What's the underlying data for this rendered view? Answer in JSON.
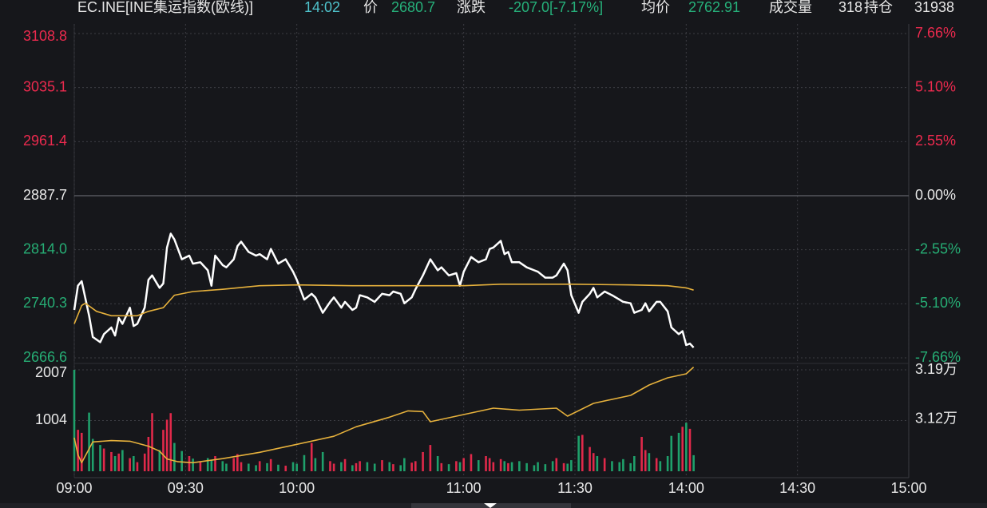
{
  "header": {
    "symbol": "EC.INE[INE集运指数(欧线)]",
    "time": "14:02",
    "price_label": "价",
    "price": 2680.7,
    "change_label": "涨跌",
    "change": "-207.0[-7.17%]",
    "avg_label": "均价",
    "avg": 2762.91,
    "volume_label": "成交量",
    "volume": 318,
    "oi_label": "持仓",
    "oi": 31938
  },
  "chart_data": [
    {
      "type": "line",
      "grid": true,
      "xlim": [
        "09:00",
        "15:00"
      ],
      "xticks": [
        "09:00",
        "09:30",
        "10:00",
        "11:00",
        "11:30",
        "14:00",
        "14:30",
        "15:00"
      ],
      "ylim": [
        2666.6,
        3108.8
      ],
      "yticks": [
        3108.8,
        3035.1,
        2961.4,
        2887.7,
        {
          "value": 2814,
          "label": "2814.0"
        },
        2740.3,
        2666.6
      ],
      "y2lim": [
        -7.66,
        7.66
      ],
      "y2ticks": [
        {
          "value": 7.66,
          "label": "7.66%"
        },
        {
          "value": 5.1,
          "label": "5.10%"
        },
        {
          "value": 2.55,
          "label": "2.55%"
        },
        {
          "value": 0,
          "label": "0.00%"
        },
        {
          "value": -2.55,
          "label": "-2.55%"
        },
        {
          "value": -5.1,
          "label": "-5.10%"
        },
        {
          "value": -7.66,
          "label": "-7.66%"
        }
      ],
      "series": [
        {
          "color": "#ffffff",
          "x": [
            "09:00",
            "09:01",
            "09:02",
            "09:04",
            "09:05",
            "09:07",
            "09:08",
            "09:10",
            "09:11",
            "09:12",
            "09:13",
            "09:15",
            "09:16",
            "09:17",
            "09:19",
            "09:20",
            "09:21",
            "09:23",
            "09:24",
            "09:25",
            "09:26",
            "09:27",
            "09:29",
            "09:31",
            "09:32",
            "09:34",
            "09:36",
            "09:37",
            "09:38",
            "09:40",
            "09:41",
            "09:43",
            "09:44",
            "09:45",
            "09:47",
            "09:49",
            "09:50",
            "09:52",
            "09:53",
            "09:55",
            "09:57",
            "09:59",
            "10:00",
            "10:02",
            "10:04",
            "10:05",
            "10:07",
            "10:09",
            "10:10",
            "10:12",
            "10:13",
            "10:15",
            "10:31",
            "10:32",
            "10:34",
            "10:36",
            "10:38",
            "10:40",
            "10:41",
            "10:43",
            "10:44",
            "10:46",
            "10:47",
            "10:49",
            "10:51",
            "10:53",
            "10:54",
            "10:56",
            "10:58",
            "10:59",
            "11:00",
            "11:02",
            "11:04",
            "11:06",
            "11:07",
            "11:08",
            "11:10",
            "11:11",
            "11:12",
            "11:13",
            "11:15",
            "11:17",
            "11:19",
            "11:20",
            "11:22",
            "11:24",
            "11:25",
            "11:27",
            "11:28",
            "11:29",
            "13:31",
            "13:32",
            "13:34",
            "13:35",
            "13:36",
            "13:38",
            "13:40",
            "13:42",
            "13:43",
            "13:45",
            "13:46",
            "13:48",
            "13:49",
            "13:50",
            "13:52",
            "13:53",
            "13:55",
            "13:56",
            "13:58",
            "13:59",
            "14:00",
            "14:01",
            "14:02"
          ],
          "values": [
            2732,
            2765,
            2771,
            2724,
            2695,
            2688,
            2699,
            2708,
            2697,
            2721,
            2713,
            2735,
            2710,
            2713,
            2735,
            2773,
            2779,
            2762,
            2768,
            2817,
            2836,
            2828,
            2801,
            2806,
            2795,
            2797,
            2786,
            2765,
            2806,
            2793,
            2790,
            2801,
            2819,
            2825,
            2811,
            2806,
            2808,
            2801,
            2815,
            2795,
            2801,
            2784,
            2773,
            2746,
            2754,
            2749,
            2728,
            2743,
            2749,
            2735,
            2743,
            2732,
            2735,
            2752,
            2749,
            2743,
            2754,
            2752,
            2757,
            2754,
            2741,
            2749,
            2760,
            2779,
            2801,
            2786,
            2790,
            2779,
            2782,
            2765,
            2784,
            2804,
            2797,
            2801,
            2815,
            2817,
            2826,
            2808,
            2811,
            2797,
            2797,
            2790,
            2786,
            2784,
            2776,
            2776,
            2779,
            2795,
            2786,
            2752,
            2728,
            2743,
            2754,
            2762,
            2749,
            2757,
            2752,
            2746,
            2743,
            2741,
            2728,
            2732,
            2741,
            2730,
            2743,
            2743,
            2730,
            2708,
            2699,
            2703,
            2684,
            2686,
            2680.7
          ]
        },
        {
          "color": "#e6b13c",
          "x": [
            "09:00",
            "09:02",
            "09:03",
            "09:06",
            "09:10",
            "09:17",
            "09:20",
            "09:24",
            "09:27",
            "09:32",
            "09:40",
            "09:50",
            "10:00",
            "10:15",
            "10:45",
            "11:00",
            "11:10",
            "11:29",
            "13:45",
            "13:55",
            "14:00",
            "14:02"
          ],
          "values": [
            2713,
            2738,
            2741,
            2730,
            2724,
            2724,
            2730,
            2735,
            2752,
            2757,
            2760,
            2765,
            2766,
            2765,
            2765,
            2765,
            2767,
            2767,
            2766,
            2765,
            2762,
            2759
          ]
        }
      ]
    },
    {
      "type": "bar",
      "grid": true,
      "xlim": [
        "09:00",
        "15:00"
      ],
      "xticks": [
        "09:00",
        "09:30",
        "10:00",
        "11:00",
        "11:30",
        "14:00",
        "14:30",
        "15:00"
      ],
      "ylim": [
        0,
        2007
      ],
      "yticks": [
        2007,
        1004
      ],
      "y2lim": [
        30466,
        31900
      ],
      "y2ticks": [
        {
          "value": 31900,
          "label": "3.19万"
        },
        {
          "value": 31200,
          "label": "3.12万"
        }
      ],
      "series": [
        {
          "type": "bar",
          "up_color": "#e0294a",
          "down_color": "#1fa06b",
          "x": [
            "09:00",
            "09:01",
            "09:02",
            "09:04",
            "09:05",
            "09:07",
            "09:08",
            "09:10",
            "09:11",
            "09:12",
            "09:13",
            "09:15",
            "09:16",
            "09:17",
            "09:19",
            "09:20",
            "09:21",
            "09:23",
            "09:24",
            "09:25",
            "09:26",
            "09:27",
            "09:29",
            "09:31",
            "09:32",
            "09:34",
            "09:36",
            "09:37",
            "09:38",
            "09:40",
            "09:41",
            "09:43",
            "09:44",
            "09:45",
            "09:47",
            "09:49",
            "09:50",
            "09:52",
            "09:53",
            "09:55",
            "09:57",
            "09:59",
            "10:00",
            "10:02",
            "10:04",
            "10:05",
            "10:07",
            "10:09",
            "10:10",
            "10:12",
            "10:13",
            "10:15",
            "10:31",
            "10:32",
            "10:34",
            "10:36",
            "10:38",
            "10:40",
            "10:41",
            "10:43",
            "10:44",
            "10:46",
            "10:47",
            "10:49",
            "10:51",
            "10:53",
            "10:54",
            "10:56",
            "10:58",
            "10:59",
            "11:00",
            "11:02",
            "11:04",
            "11:06",
            "11:07",
            "11:08",
            "11:10",
            "11:11",
            "11:12",
            "11:13",
            "11:15",
            "11:17",
            "11:19",
            "11:20",
            "11:22",
            "11:24",
            "11:25",
            "11:27",
            "11:28",
            "11:29",
            "13:31",
            "13:32",
            "13:34",
            "13:35",
            "13:36",
            "13:38",
            "13:40",
            "13:42",
            "13:43",
            "13:45",
            "13:46",
            "13:48",
            "13:49",
            "13:50",
            "13:52",
            "13:53",
            "13:55",
            "13:56",
            "13:58",
            "13:59",
            "14:00",
            "14:01",
            "14:02"
          ],
          "values": [
            2007,
            820,
            760,
            1160,
            640,
            520,
            450,
            380,
            300,
            350,
            420,
            260,
            300,
            180,
            350,
            680,
            1150,
            420,
            820,
            1020,
            1150,
            560,
            400,
            300,
            250,
            180,
            260,
            220,
            300,
            200,
            150,
            260,
            340,
            180,
            150,
            120,
            200,
            160,
            240,
            130,
            110,
            180,
            150,
            320,
            560,
            260,
            380,
            200,
            150,
            180,
            240,
            120,
            160,
            200,
            180,
            150,
            220,
            180,
            140,
            120,
            260,
            170,
            200,
            380,
            520,
            300,
            160,
            140,
            200,
            180,
            260,
            340,
            220,
            300,
            260,
            180,
            240,
            200,
            160,
            180,
            200,
            160,
            120,
            180,
            140,
            200,
            260,
            160,
            150,
            220,
            700,
            720,
            480,
            360,
            300,
            260,
            200,
            180,
            240,
            160,
            300,
            680,
            420,
            360,
            260,
            200,
            300,
            700,
            760,
            880,
            960,
            840,
            318
          ]
        },
        {
          "type": "line",
          "axis": "y2",
          "color": "#e6b13c",
          "x": [
            "09:00",
            "09:01",
            "09:02",
            "09:05",
            "09:10",
            "09:15",
            "09:20",
            "09:23",
            "09:25",
            "09:28",
            "09:32",
            "09:40",
            "09:50",
            "10:00",
            "10:10",
            "10:31",
            "10:40",
            "10:45",
            "10:49",
            "10:51",
            "11:00",
            "11:08",
            "11:15",
            "11:25",
            "11:28",
            "13:35",
            "13:45",
            "13:50",
            "13:55",
            "14:00",
            "14:02"
          ],
          "values": [
            30940,
            30700,
            30587,
            30880,
            30900,
            30890,
            30820,
            30750,
            30640,
            30600,
            30587,
            30644,
            30734,
            30847,
            30960,
            31095,
            31230,
            31320,
            31310,
            31166,
            31268,
            31358,
            31330,
            31358,
            31245,
            31426,
            31539,
            31685,
            31787,
            31843,
            31938
          ]
        }
      ]
    }
  ]
}
